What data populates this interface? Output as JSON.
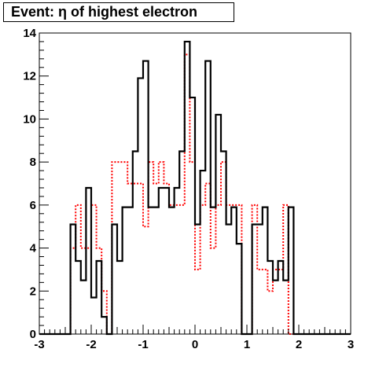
{
  "chart_data": {
    "type": "histogram",
    "title": "Event: η of highest electron",
    "xlabel": "",
    "ylabel": "",
    "xlim": [
      -3,
      3
    ],
    "ylim": [
      0,
      14
    ],
    "grid": false,
    "legend": "none",
    "x_ticks": [
      "-3",
      "-2",
      "-1",
      "0",
      "1",
      "2",
      "3"
    ],
    "y_ticks": [
      "0",
      "2",
      "4",
      "6",
      "8",
      "10",
      "12",
      "14"
    ],
    "bin_edges": [
      -3.0,
      -2.9,
      -2.8,
      -2.7,
      -2.6,
      -2.5,
      -2.4,
      -2.3,
      -2.2,
      -2.1,
      -2.0,
      -1.9,
      -1.8,
      -1.7,
      -1.6,
      -1.5,
      -1.4,
      -1.3,
      -1.2,
      -1.1,
      -1.0,
      -0.9,
      -0.8,
      -0.7,
      -0.6,
      -0.5,
      -0.4,
      -0.3,
      -0.2,
      -0.1,
      0.0,
      0.1,
      0.2,
      0.3,
      0.4,
      0.5,
      0.6,
      0.7,
      0.8,
      0.9,
      1.0,
      1.1,
      1.2,
      1.3,
      1.4,
      1.5,
      1.6,
      1.7,
      1.8,
      1.9,
      2.0,
      2.1,
      2.2,
      2.3,
      2.4,
      2.5,
      2.6,
      2.7,
      2.8,
      2.9,
      3.0
    ],
    "series": [
      {
        "color": "#000000",
        "style": "solid",
        "values": [
          0,
          0,
          0,
          0,
          0,
          0,
          5.1,
          3.4,
          2.5,
          6.8,
          1.7,
          3.4,
          0.8,
          0,
          5.1,
          3.4,
          5.9,
          5.9,
          8.5,
          11.9,
          12.7,
          5.9,
          5.9,
          6.8,
          6.8,
          5.9,
          6.8,
          8.5,
          13.6,
          11.0,
          5.1,
          7.6,
          12.7,
          5.9,
          10.2,
          8.5,
          5.1,
          5.9,
          4.2,
          0,
          0,
          5.1,
          5.1,
          5.9,
          3.4,
          2.5,
          3.4,
          2.5,
          5.9,
          0,
          0,
          0,
          0,
          0,
          0,
          0,
          0,
          0,
          0,
          0
        ]
      },
      {
        "color": "#ff0000",
        "style": "dotted",
        "values": [
          0,
          0,
          0,
          0,
          0,
          0,
          4.0,
          6.0,
          4.0,
          4.0,
          6.0,
          4.0,
          2.0,
          0,
          8.0,
          8.0,
          8.0,
          7.0,
          7.0,
          7.0,
          5.0,
          8.0,
          7.0,
          8.0,
          7.0,
          6.0,
          6.0,
          6.0,
          13.0,
          8.0,
          3.0,
          6.0,
          7.0,
          4.0,
          6.0,
          8.0,
          6.0,
          6.0,
          6.0,
          0,
          0,
          6.0,
          3.0,
          3.0,
          2.0,
          3.0,
          3.0,
          6.0,
          0,
          0,
          0,
          0,
          0,
          0,
          0,
          0,
          0,
          0,
          0
        ]
      }
    ]
  }
}
